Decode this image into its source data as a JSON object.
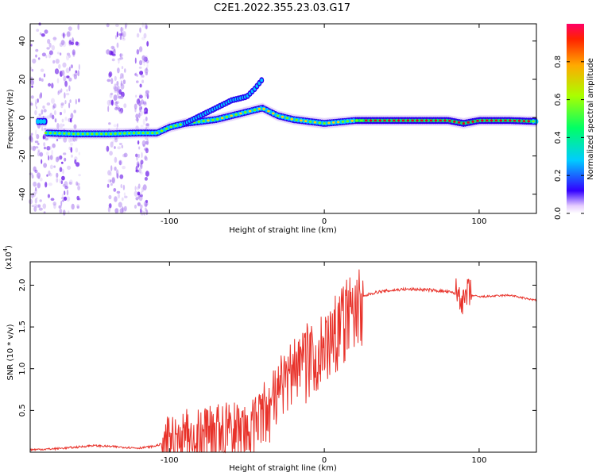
{
  "title": "C2E1.2022.355.23.03.G17",
  "chart_data": [
    {
      "type": "heatmap",
      "xlabel": "Height of straight line (km)",
      "ylabel": "Frequency (Hz)",
      "xlim": [
        -190,
        137
      ],
      "ylim": [
        -50,
        49
      ],
      "xticks": [
        -100,
        0,
        100
      ],
      "yticks": [
        -40,
        -20,
        0,
        20,
        40
      ],
      "colorbar": {
        "label": "Normalized spectral amplitude",
        "ticks": [
          "0.0",
          "0.2",
          "0.4",
          "0.6",
          "0.8"
        ],
        "range": [
          0,
          1
        ]
      },
      "trace": {
        "x": [
          -180,
          -160,
          -140,
          -120,
          -108,
          -100,
          -90,
          -80,
          -70,
          -60,
          -50,
          -40,
          -30,
          -20,
          -10,
          0,
          20,
          40,
          60,
          80,
          90,
          100,
          120,
          137
        ],
        "freq": [
          -8,
          -8.5,
          -8.5,
          -8,
          -8,
          -5,
          -3,
          -2,
          -1,
          1,
          3,
          5,
          1,
          -1,
          -2,
          -3,
          -1.5,
          -1.5,
          -1.5,
          -1.5,
          -3,
          -1.5,
          -1.5,
          -2
        ]
      },
      "upper_branch": {
        "x": [
          -90,
          -80,
          -70,
          -60,
          -50,
          -45,
          -40
        ],
        "freq": [
          -3,
          1,
          5,
          9,
          11,
          15,
          20
        ]
      },
      "grid": false
    },
    {
      "type": "line",
      "xlabel": "Height of straight line (km)",
      "ylabel": "SNR (10 * v/v)",
      "multiplier": "(x10^4)",
      "multiplier_base": "(x10",
      "multiplier_exp": "4",
      "xlim": [
        -190,
        137
      ],
      "ylim": [
        0,
        2.28
      ],
      "xticks": [
        -100,
        0,
        100
      ],
      "yticks": [
        0.5,
        1.0,
        1.5,
        2.0
      ],
      "ytick_labels": [
        "0.5",
        "1.0",
        "1.5",
        "2.0"
      ],
      "color": "#e8322a",
      "series": [
        {
          "x": [
            -190,
            -175,
            -160,
            -150,
            -140,
            -130,
            -120,
            -110,
            -105,
            -100,
            -95,
            -90,
            -85,
            -80,
            -75,
            -70,
            -65,
            -60,
            -55,
            -50,
            -45,
            -40,
            -35,
            -30,
            -25,
            -20,
            -15,
            -10,
            -5,
            0,
            5,
            10,
            15,
            20,
            25,
            30,
            35,
            40,
            50,
            60,
            70,
            80,
            85,
            88,
            90,
            92,
            95,
            100,
            110,
            120,
            130,
            137
          ],
          "values": [
            0.03,
            0.04,
            0.06,
            0.08,
            0.07,
            0.06,
            0.05,
            0.07,
            0.1,
            0.15,
            0.2,
            0.3,
            0.28,
            0.25,
            0.3,
            0.28,
            0.32,
            0.28,
            0.35,
            0.3,
            0.4,
            0.55,
            0.6,
            0.85,
            0.95,
            1.05,
            1.15,
            1.2,
            1.25,
            1.35,
            1.45,
            1.6,
            1.75,
            1.82,
            1.86,
            1.9,
            1.92,
            1.93,
            1.95,
            1.95,
            1.94,
            1.92,
            1.9,
            1.9,
            1.75,
            1.9,
            1.88,
            1.86,
            1.87,
            1.88,
            1.84,
            1.82
          ]
        }
      ],
      "grid": false
    }
  ]
}
